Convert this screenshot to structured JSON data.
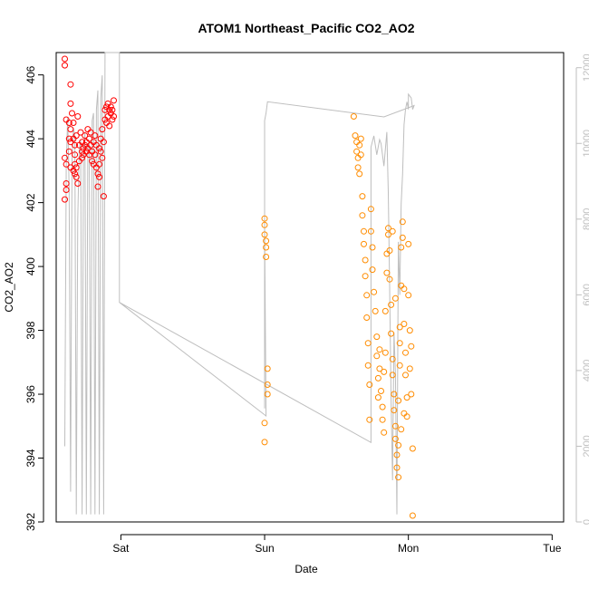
{
  "chart_data": {
    "type": "scatter",
    "title": "ATOM1 Northeast_Pacific CO2_AO2",
    "xlabel": "Date",
    "ylabel": "CO2_AO2",
    "x_ticks": [
      "Sat",
      "Sun",
      "Mon",
      "Tue"
    ],
    "y_ticks": [
      392,
      394,
      396,
      398,
      400,
      402,
      404,
      406
    ],
    "y_right_ticks": [
      0,
      2000,
      4000,
      6000,
      8000,
      10000,
      12000
    ],
    "xlim": [
      -0.45,
      3.08
    ],
    "ylim": [
      392,
      406.7
    ],
    "y_right_lim": [
      0,
      12400
    ],
    "grid": false,
    "colors": {
      "series_red": "#ff0000",
      "series_orange": "#ff8c00",
      "altitude_line": "#bebebe",
      "right_axis": "#bebebe"
    },
    "series": [
      {
        "color": "#ff0000",
        "points": [
          [
            -0.39,
            406.5
          ],
          [
            -0.39,
            406.3
          ],
          [
            -0.38,
            404.6
          ],
          [
            -0.39,
            403.4
          ],
          [
            -0.38,
            403.2
          ],
          [
            -0.38,
            402.6
          ],
          [
            -0.38,
            402.4
          ],
          [
            -0.39,
            402.1
          ],
          [
            -0.36,
            404.5
          ],
          [
            -0.35,
            404.3
          ],
          [
            -0.35,
            405.7
          ],
          [
            -0.35,
            405.1
          ],
          [
            -0.36,
            404.0
          ],
          [
            -0.35,
            403.9
          ],
          [
            -0.36,
            403.6
          ],
          [
            -0.35,
            403.1
          ],
          [
            -0.34,
            404.8
          ],
          [
            -0.33,
            404.5
          ],
          [
            -0.33,
            404.0
          ],
          [
            -0.32,
            403.8
          ],
          [
            -0.32,
            403.5
          ],
          [
            -0.32,
            403.2
          ],
          [
            -0.33,
            403.0
          ],
          [
            -0.32,
            402.9
          ],
          [
            -0.31,
            404.1
          ],
          [
            -0.31,
            403.1
          ],
          [
            -0.31,
            402.8
          ],
          [
            -0.3,
            402.6
          ],
          [
            -0.3,
            404.7
          ],
          [
            -0.29,
            403.8
          ],
          [
            -0.29,
            403.3
          ],
          [
            -0.28,
            404.2
          ],
          [
            -0.27,
            403.9
          ],
          [
            -0.27,
            403.6
          ],
          [
            -0.27,
            403.4
          ],
          [
            -0.26,
            403.7
          ],
          [
            -0.26,
            403.5
          ],
          [
            -0.25,
            404.1
          ],
          [
            -0.25,
            403.8
          ],
          [
            -0.24,
            403.6
          ],
          [
            -0.24,
            403.9
          ],
          [
            -0.23,
            404.3
          ],
          [
            -0.23,
            403.7
          ],
          [
            -0.22,
            403.5
          ],
          [
            -0.22,
            404.0
          ],
          [
            -0.21,
            403.8
          ],
          [
            -0.21,
            404.2
          ],
          [
            -0.2,
            403.6
          ],
          [
            -0.2,
            403.3
          ],
          [
            -0.19,
            403.9
          ],
          [
            -0.19,
            403.2
          ],
          [
            -0.18,
            404.1
          ],
          [
            -0.18,
            403.5
          ],
          [
            -0.17,
            403.8
          ],
          [
            -0.17,
            403.1
          ],
          [
            -0.16,
            402.9
          ],
          [
            -0.16,
            402.5
          ],
          [
            -0.15,
            403.2
          ],
          [
            -0.15,
            402.8
          ],
          [
            -0.15,
            403.7
          ],
          [
            -0.14,
            403.6
          ],
          [
            -0.14,
            404.0
          ],
          [
            -0.13,
            403.4
          ],
          [
            -0.13,
            404.3
          ],
          [
            -0.12,
            403.9
          ],
          [
            -0.12,
            402.2
          ],
          [
            -0.11,
            404.6
          ],
          [
            -0.11,
            404.9
          ],
          [
            -0.1,
            405.0
          ],
          [
            -0.1,
            404.5
          ],
          [
            -0.09,
            404.7
          ],
          [
            -0.09,
            405.1
          ],
          [
            -0.08,
            404.9
          ],
          [
            -0.08,
            404.4
          ],
          [
            -0.07,
            405.0
          ],
          [
            -0.07,
            404.8
          ],
          [
            -0.06,
            404.6
          ],
          [
            -0.06,
            404.9
          ],
          [
            -0.05,
            405.2
          ],
          [
            -0.05,
            404.7
          ]
        ]
      },
      {
        "color": "#ff8c00",
        "points": [
          [
            1.0,
            401.5
          ],
          [
            1.0,
            401.3
          ],
          [
            1.0,
            401.0
          ],
          [
            1.01,
            400.8
          ],
          [
            1.01,
            400.6
          ],
          [
            1.01,
            400.3
          ],
          [
            1.02,
            396.8
          ],
          [
            1.02,
            396.3
          ],
          [
            1.02,
            396.0
          ],
          [
            1.0,
            395.1
          ],
          [
            1.0,
            394.5
          ],
          [
            1.62,
            404.7
          ],
          [
            1.63,
            404.1
          ],
          [
            1.64,
            403.9
          ],
          [
            1.64,
            403.6
          ],
          [
            1.65,
            403.4
          ],
          [
            1.65,
            403.1
          ],
          [
            1.66,
            402.9
          ],
          [
            1.66,
            403.8
          ],
          [
            1.67,
            404.0
          ],
          [
            1.67,
            403.5
          ],
          [
            1.68,
            402.2
          ],
          [
            1.68,
            401.6
          ],
          [
            1.69,
            401.1
          ],
          [
            1.69,
            400.7
          ],
          [
            1.7,
            400.2
          ],
          [
            1.7,
            399.7
          ],
          [
            1.71,
            399.1
          ],
          [
            1.71,
            398.4
          ],
          [
            1.72,
            397.6
          ],
          [
            1.72,
            396.9
          ],
          [
            1.73,
            396.3
          ],
          [
            1.73,
            395.2
          ],
          [
            1.74,
            401.8
          ],
          [
            1.74,
            401.1
          ],
          [
            1.75,
            400.6
          ],
          [
            1.75,
            399.9
          ],
          [
            1.76,
            399.2
          ],
          [
            1.77,
            398.6
          ],
          [
            1.78,
            397.8
          ],
          [
            1.78,
            397.2
          ],
          [
            1.79,
            396.5
          ],
          [
            1.79,
            395.9
          ],
          [
            1.8,
            396.8
          ],
          [
            1.8,
            397.4
          ],
          [
            1.81,
            396.1
          ],
          [
            1.82,
            395.6
          ],
          [
            1.82,
            395.2
          ],
          [
            1.83,
            394.8
          ],
          [
            1.83,
            396.7
          ],
          [
            1.84,
            397.3
          ],
          [
            1.84,
            398.6
          ],
          [
            1.85,
            399.8
          ],
          [
            1.85,
            400.4
          ],
          [
            1.86,
            401.2
          ],
          [
            1.86,
            401.0
          ],
          [
            1.87,
            400.5
          ],
          [
            1.87,
            399.6
          ],
          [
            1.88,
            398.8
          ],
          [
            1.88,
            397.9
          ],
          [
            1.89,
            397.1
          ],
          [
            1.89,
            396.6
          ],
          [
            1.9,
            396.0
          ],
          [
            1.9,
            395.5
          ],
          [
            1.91,
            395.0
          ],
          [
            1.91,
            394.6
          ],
          [
            1.92,
            394.1
          ],
          [
            1.92,
            393.7
          ],
          [
            1.93,
            394.4
          ],
          [
            1.93,
            395.8
          ],
          [
            1.94,
            396.9
          ],
          [
            1.94,
            398.1
          ],
          [
            1.95,
            399.4
          ],
          [
            1.95,
            400.6
          ],
          [
            1.96,
            401.4
          ],
          [
            1.96,
            400.9
          ],
          [
            1.97,
            399.3
          ],
          [
            1.97,
            398.2
          ],
          [
            1.98,
            397.3
          ],
          [
            1.98,
            396.6
          ],
          [
            1.99,
            395.9
          ],
          [
            1.99,
            395.3
          ],
          [
            2.0,
            400.7
          ],
          [
            2.0,
            399.1
          ],
          [
            2.01,
            398.0
          ],
          [
            2.01,
            396.8
          ],
          [
            2.02,
            397.5
          ],
          [
            2.02,
            396.0
          ],
          [
            2.03,
            394.3
          ],
          [
            2.03,
            392.2
          ],
          [
            1.97,
            395.4
          ],
          [
            1.95,
            394.9
          ],
          [
            1.93,
            393.4
          ],
          [
            1.94,
            397.6
          ],
          [
            1.91,
            399.0
          ],
          [
            1.89,
            401.1
          ]
        ]
      }
    ],
    "altitude_line": {
      "color": "#bebebe",
      "points": [
        [
          -0.39,
          2000
        ],
        [
          -0.38,
          9400
        ],
        [
          -0.37,
          10700
        ],
        [
          -0.36,
          8800
        ],
        [
          -0.35,
          800
        ],
        [
          -0.34,
          9600
        ],
        [
          -0.33,
          10400
        ],
        [
          -0.32,
          10200
        ],
        [
          -0.31,
          200
        ],
        [
          -0.3,
          8000
        ],
        [
          -0.29,
          9800
        ],
        [
          -0.28,
          10100
        ],
        [
          -0.27,
          200
        ],
        [
          -0.26,
          9700
        ],
        [
          -0.25,
          10300
        ],
        [
          -0.24,
          200
        ],
        [
          -0.23,
          9900
        ],
        [
          -0.22,
          10000
        ],
        [
          -0.21,
          200
        ],
        [
          -0.2,
          10600
        ],
        [
          -0.19,
          10800
        ],
        [
          -0.18,
          200
        ],
        [
          -0.17,
          10900
        ],
        [
          -0.16,
          11400
        ],
        [
          -0.15,
          200
        ],
        [
          -0.14,
          11200
        ],
        [
          -0.13,
          11800
        ],
        [
          -0.12,
          200
        ],
        [
          -0.11,
          12400
        ],
        [
          -0.01,
          12400
        ],
        [
          -0.01,
          5800
        ],
        [
          1.74,
          2100
        ],
        [
          1.74,
          9900
        ],
        [
          1.76,
          10200
        ],
        [
          1.78,
          9700
        ],
        [
          1.8,
          10100
        ],
        [
          1.81,
          10000
        ],
        [
          1.83,
          9400
        ],
        [
          1.85,
          10300
        ],
        [
          1.86,
          8700
        ],
        [
          1.87,
          6200
        ],
        [
          1.88,
          3200
        ],
        [
          1.89,
          1100
        ],
        [
          1.9,
          5000
        ],
        [
          1.91,
          3900
        ],
        [
          1.92,
          200
        ],
        [
          1.93,
          7400
        ],
        [
          1.94,
          6000
        ],
        [
          1.95,
          8400
        ],
        [
          1.96,
          9200
        ],
        [
          1.97,
          10500
        ],
        [
          1.98,
          10900
        ],
        [
          1.99,
          11100
        ],
        [
          2.0,
          10900
        ],
        [
          2.0,
          11300
        ],
        [
          2.02,
          11200
        ],
        [
          2.03,
          10900
        ],
        [
          2.04,
          11000
        ],
        [
          1.83,
          10700
        ],
        [
          1.02,
          11100
        ],
        [
          1.01,
          10800
        ],
        [
          1.0,
          10600
        ],
        [
          1.0,
          3000
        ],
        [
          1.0,
          7800
        ],
        [
          1.01,
          2800
        ],
        [
          -0.01,
          5800
        ]
      ]
    }
  }
}
